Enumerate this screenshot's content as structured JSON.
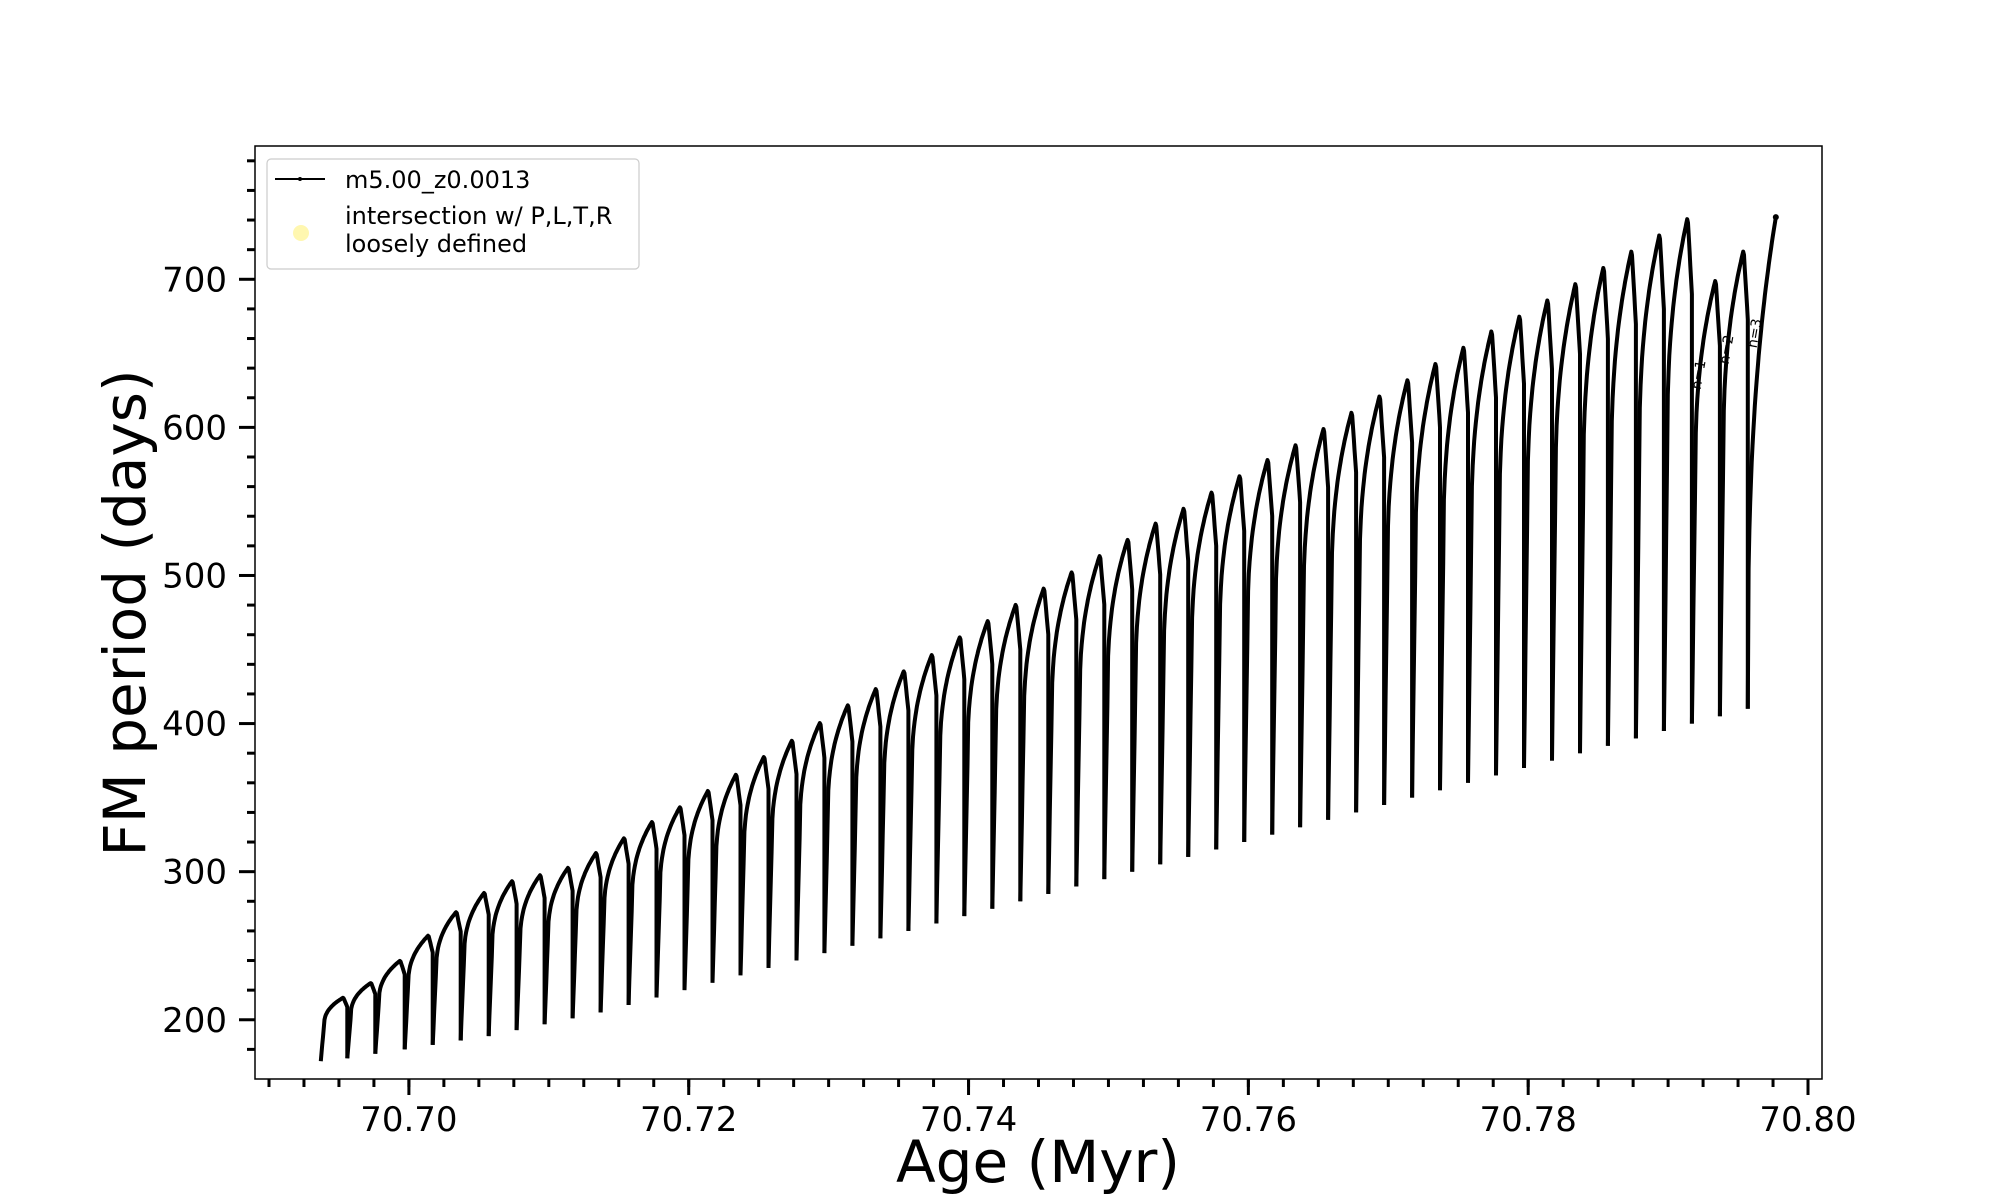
{
  "chart_data": {
    "type": "line",
    "title": "",
    "xlabel": "Age (Myr)",
    "ylabel": "FM period (days)",
    "xlim": [
      70.689,
      70.801
    ],
    "ylim": [
      160,
      790
    ],
    "x_ticks": [
      70.7,
      70.72,
      70.74,
      70.76,
      70.78,
      70.8
    ],
    "x_tick_labels": [
      "70.70",
      "70.72",
      "70.74",
      "70.76",
      "70.78",
      "70.80"
    ],
    "y_ticks": [
      200,
      300,
      400,
      500,
      600,
      700
    ],
    "y_tick_labels": [
      "200",
      "300",
      "400",
      "500",
      "600",
      "700"
    ],
    "grid": false,
    "legend": {
      "placement": "top-left",
      "entries": [
        {
          "label": "m5.00_z0.0013",
          "style": "line-with-dots",
          "color": "#000000"
        },
        {
          "label_lines": [
            "intersection w/ P,L,T,R",
            "loosely defined"
          ],
          "style": "marker",
          "color": "#fff7b0"
        }
      ]
    },
    "series": [
      {
        "name": "m5.00_z0.0013",
        "color": "#000000",
        "description": "Thermal-pulse cycles: period rises steeply after each pulse then drops sharply",
        "cycle_starts": [
          70.6937,
          70.6956,
          70.6976,
          70.6997,
          70.7017,
          70.7037,
          70.7057,
          70.7077,
          70.7097,
          70.7117,
          70.7137,
          70.7157,
          70.7177,
          70.7197,
          70.7217,
          70.7237,
          70.7257,
          70.7277,
          70.7297,
          70.7317,
          70.7337,
          70.7357,
          70.7377,
          70.7397,
          70.7417,
          70.7437,
          70.7457,
          70.7477,
          70.7497,
          70.7517,
          70.7537,
          70.7557,
          70.7577,
          70.7597,
          70.7617,
          70.7637,
          70.7657,
          70.7677,
          70.7697,
          70.7717,
          70.7737,
          70.7757,
          70.7777,
          70.7797,
          70.7817,
          70.7837,
          70.7857,
          70.7877,
          70.7897,
          70.7917,
          70.7937,
          70.7957
        ],
        "cycle_minima": [
          172,
          174,
          177,
          180,
          183,
          186,
          189,
          193,
          197,
          201,
          205,
          210,
          215,
          220,
          225,
          230,
          235,
          240,
          245,
          250,
          255,
          260,
          265,
          270,
          275,
          280,
          285,
          290,
          295,
          300,
          305,
          310,
          315,
          320,
          325,
          330,
          335,
          340,
          345,
          350,
          355,
          360,
          365,
          370,
          375,
          380,
          385,
          390,
          395,
          400,
          405,
          410
        ],
        "cycle_maxima": [
          215,
          225,
          240,
          257,
          273,
          286,
          294,
          298,
          303,
          313,
          323,
          334,
          344,
          355,
          366,
          378,
          389,
          401,
          413,
          424,
          436,
          447,
          459,
          470,
          481,
          492,
          503,
          514,
          525,
          536,
          546,
          557,
          568,
          579,
          589,
          600,
          611,
          622,
          633,
          644,
          655,
          666,
          676,
          687,
          698,
          709,
          720,
          731,
          742,
          700,
          720,
          742
        ],
        "end_point": [
          70.7977,
          742
        ]
      }
    ],
    "annotations": [
      {
        "text": "n=1",
        "x": 70.7925,
        "y": 635
      },
      {
        "text": "n=2",
        "x": 70.7945,
        "y": 652
      },
      {
        "text": "n=3",
        "x": 70.7965,
        "y": 663
      }
    ]
  }
}
